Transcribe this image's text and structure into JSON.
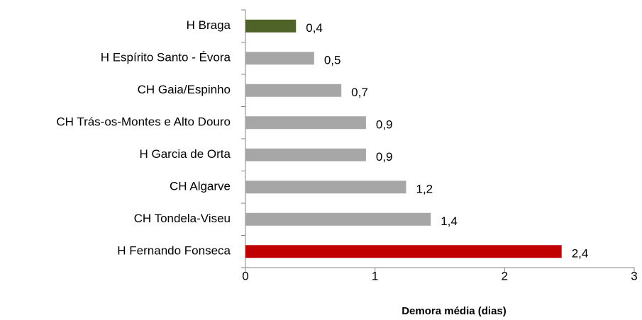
{
  "chart_data": {
    "type": "bar",
    "orientation": "horizontal",
    "categories": [
      "H Braga",
      "H Espírito Santo - Évora",
      "CH Gaia/Espinho",
      "CH Trás-os-Montes e Alto Douro",
      "H Garcia de Orta",
      "CH Algarve",
      "CH Tondela-Viseu",
      "H Fernando Fonseca"
    ],
    "values": [
      0.39,
      0.53,
      0.74,
      0.93,
      0.93,
      1.24,
      1.43,
      2.44
    ],
    "value_labels": [
      "0,4",
      "0,5",
      "0,7",
      "0,9",
      "0,9",
      "1,2",
      "1,4",
      "2,4"
    ],
    "colors": [
      "#4f6228",
      "#a6a6a6",
      "#a6a6a6",
      "#a6a6a6",
      "#a6a6a6",
      "#a6a6a6",
      "#a6a6a6",
      "#c00000"
    ],
    "xlabel": "Demora média (dias)",
    "xlim": [
      0,
      3
    ],
    "xticks": [
      0,
      1,
      2,
      3
    ]
  }
}
